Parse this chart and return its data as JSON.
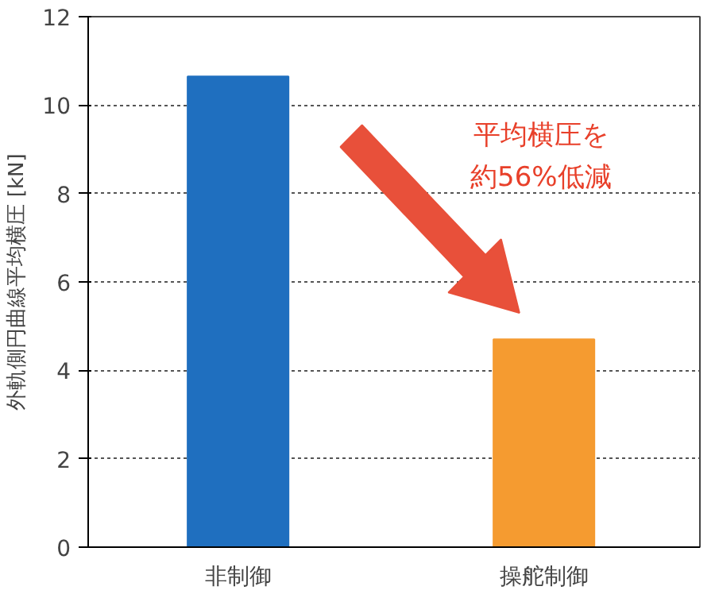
{
  "chart_data": {
    "type": "bar",
    "ylabel": "外軌側円曲線平均横圧 [kN]",
    "categories": [
      "非制御",
      "操舵制御"
    ],
    "values": [
      10.65,
      4.7
    ],
    "colors": [
      "#1f6fbf",
      "#f59b30"
    ],
    "ylim": [
      0,
      12
    ],
    "yticks": [
      0,
      2,
      4,
      6,
      8,
      10,
      12
    ],
    "grid": "y",
    "annotations": [
      "平均横圧を",
      "約56%低減"
    ]
  }
}
